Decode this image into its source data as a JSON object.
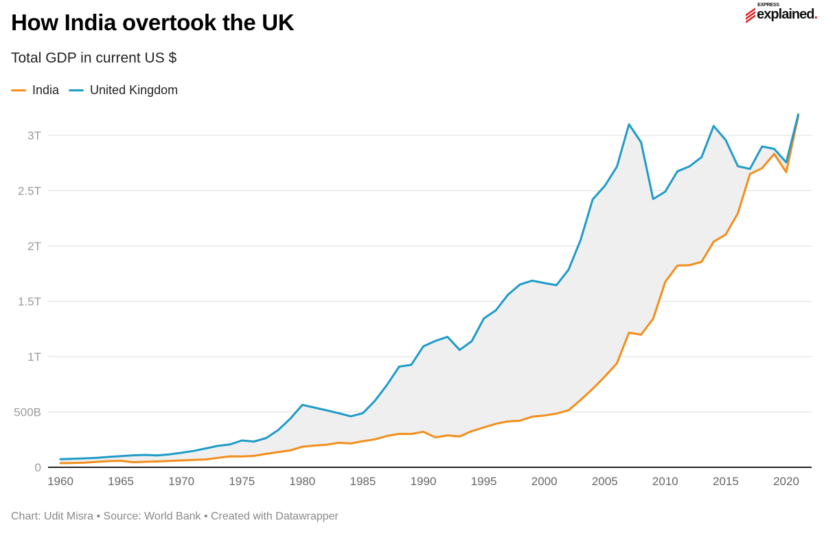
{
  "header": {
    "title": "How India overtook the UK",
    "subtitle": "Total GDP in current US $"
  },
  "logo": {
    "top_text": "EXPRESS",
    "main_text": "explained",
    "dot": ".",
    "accent_color": "#e01b22"
  },
  "footer": {
    "credit": "Chart: Udit Misra • Source: World Bank • Created with Datawrapper"
  },
  "chart_data": {
    "type": "line",
    "title": "How India overtook the UK",
    "subtitle": "Total GDP in current US $",
    "xlabel": "",
    "ylabel": "",
    "x": [
      1960,
      1961,
      1962,
      1963,
      1964,
      1965,
      1966,
      1967,
      1968,
      1969,
      1970,
      1971,
      1972,
      1973,
      1974,
      1975,
      1976,
      1977,
      1978,
      1979,
      1980,
      1981,
      1982,
      1983,
      1984,
      1985,
      1986,
      1987,
      1988,
      1989,
      1990,
      1991,
      1992,
      1993,
      1994,
      1995,
      1996,
      1997,
      1998,
      1999,
      2000,
      2001,
      2002,
      2003,
      2004,
      2005,
      2006,
      2007,
      2008,
      2009,
      2010,
      2011,
      2012,
      2013,
      2014,
      2015,
      2016,
      2017,
      2018,
      2019,
      2020,
      2021
    ],
    "series": [
      {
        "name": "India",
        "color": "#f28e1c",
        "values": [
          0.037,
          0.039,
          0.042,
          0.049,
          0.056,
          0.059,
          0.046,
          0.05,
          0.053,
          0.058,
          0.062,
          0.067,
          0.071,
          0.085,
          0.099,
          0.098,
          0.103,
          0.121,
          0.137,
          0.153,
          0.186,
          0.196,
          0.204,
          0.222,
          0.215,
          0.236,
          0.253,
          0.283,
          0.302,
          0.301,
          0.321,
          0.27,
          0.288,
          0.279,
          0.327,
          0.36,
          0.393,
          0.415,
          0.421,
          0.458,
          0.468,
          0.485,
          0.515,
          0.608,
          0.709,
          0.82,
          0.94,
          1.217,
          1.199,
          1.342,
          1.676,
          1.823,
          1.827,
          1.857,
          2.039,
          2.104,
          2.295,
          2.651,
          2.703,
          2.832,
          2.668,
          3.176
        ]
      },
      {
        "name": "United Kingdom",
        "color": "#1f9bc7",
        "values": [
          0.073,
          0.077,
          0.081,
          0.086,
          0.094,
          0.101,
          0.108,
          0.112,
          0.107,
          0.117,
          0.131,
          0.148,
          0.17,
          0.193,
          0.206,
          0.242,
          0.233,
          0.264,
          0.336,
          0.439,
          0.564,
          0.54,
          0.515,
          0.489,
          0.461,
          0.489,
          0.601,
          0.745,
          0.91,
          0.926,
          1.093,
          1.142,
          1.179,
          1.061,
          1.14,
          1.345,
          1.419,
          1.56,
          1.653,
          1.687,
          1.665,
          1.646,
          1.785,
          2.054,
          2.421,
          2.544,
          2.717,
          3.1,
          2.938,
          2.425,
          2.491,
          2.675,
          2.72,
          2.803,
          3.085,
          2.957,
          2.722,
          2.697,
          2.9,
          2.878,
          2.756,
          3.19
        ]
      }
    ],
    "fill_between": {
      "color": "#efefef"
    },
    "y_unit": "trillion US$",
    "ylim": [
      0,
      3.2
    ],
    "y_ticks": [
      {
        "value": 0,
        "label": "0"
      },
      {
        "value": 0.5,
        "label": "500B"
      },
      {
        "value": 1,
        "label": "1T"
      },
      {
        "value": 1.5,
        "label": "1.5T"
      },
      {
        "value": 2,
        "label": "2T"
      },
      {
        "value": 2.5,
        "label": "2.5T"
      },
      {
        "value": 3,
        "label": "3T"
      }
    ],
    "x_ticks": [
      1960,
      1965,
      1970,
      1975,
      1980,
      1985,
      1990,
      1995,
      2000,
      2005,
      2010,
      2015,
      2020
    ],
    "xlim": [
      1960,
      2021
    ],
    "grid": true,
    "legend_position": "top-left"
  }
}
